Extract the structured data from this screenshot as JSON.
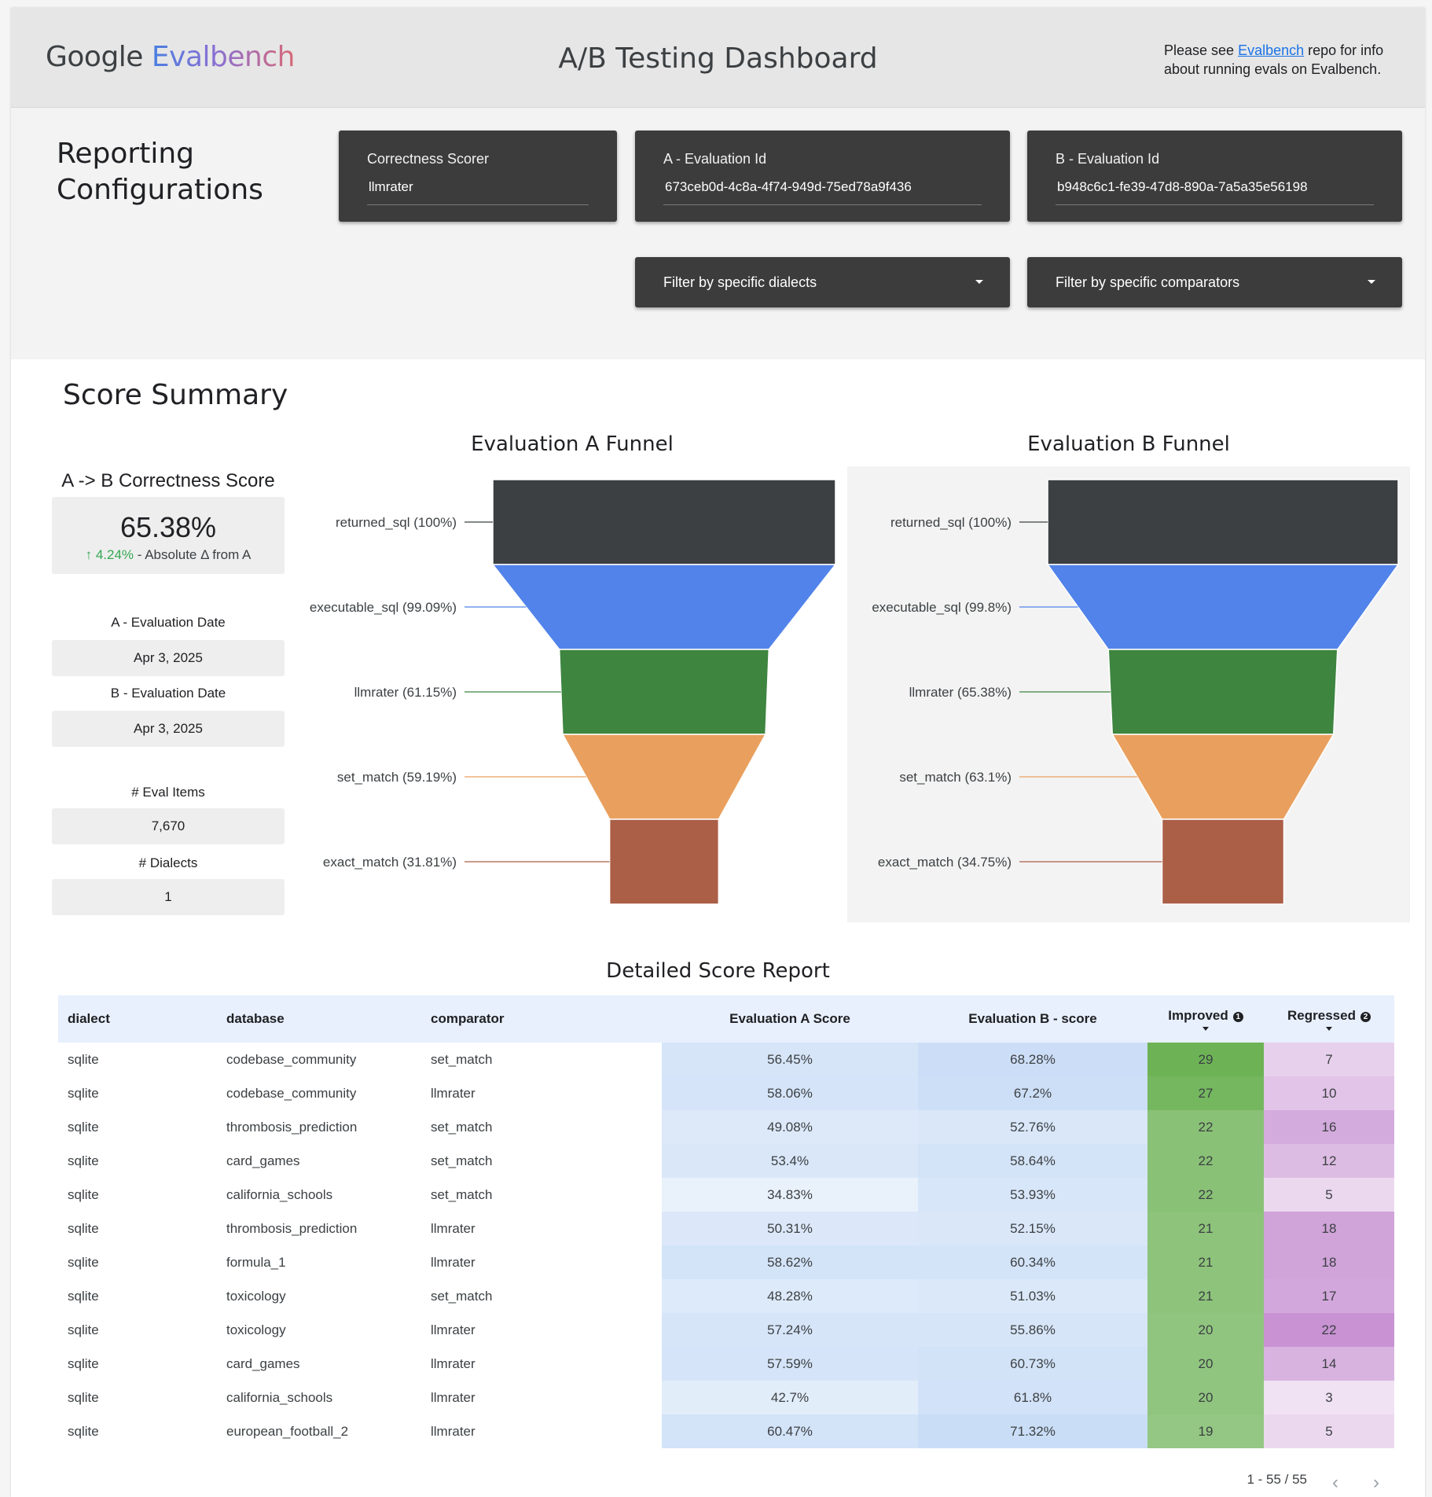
{
  "header": {
    "logo_google": "Google",
    "logo_evalbench": "Evalbench",
    "title": "A/B Testing Dashboard",
    "info_prefix": "Please see ",
    "info_link": "Evalbench",
    "info_suffix": " repo for info about running evals on Evalbench."
  },
  "config": {
    "title": "Reporting Configurations",
    "scorer": {
      "label": "Correctness Scorer",
      "value": "llmrater"
    },
    "eval_a": {
      "label": "A - Evaluation Id",
      "value": "673ceb0d-4c8a-4f74-949d-75ed78a9f436"
    },
    "eval_b": {
      "label": "B - Evaluation Id",
      "value": "b948c6c1-fe39-47d8-890a-7a5a35e56198"
    },
    "dialects_filter": "Filter by specific dialects",
    "comparators_filter": "Filter by specific comparators"
  },
  "summary": {
    "title": "Score Summary",
    "correctness_title": "A -> B Correctness Score",
    "correctness_value": "65.38%",
    "delta_value": "4.24%",
    "delta_suffix": " - Absolute Δ from A",
    "a_date_label": "A - Evaluation Date",
    "a_date": "Apr 3, 2025",
    "b_date_label": "B - Evaluation Date",
    "b_date": "Apr 3, 2025",
    "eval_items_label": "# Eval Items",
    "eval_items": "7,670",
    "dialects_label": "# Dialects",
    "dialects": "1"
  },
  "chart_data": [
    {
      "type": "funnel",
      "title": "Evaluation A Funnel",
      "stages": [
        {
          "name": "returned_sql",
          "label": "returned_sql (100%)",
          "value": 100,
          "color": "#3c4043"
        },
        {
          "name": "executable_sql",
          "label": "executable_sql (99.09%)",
          "value": 99.09,
          "color": "#5283ea"
        },
        {
          "name": "llmrater",
          "label": "llmrater (61.15%)",
          "value": 61.15,
          "color": "#3e8540"
        },
        {
          "name": "set_match",
          "label": "set_match (59.19%)",
          "value": 59.19,
          "color": "#e9a05e"
        },
        {
          "name": "exact_match",
          "label": "exact_match (31.81%)",
          "value": 31.81,
          "color": "#ab5f47"
        }
      ]
    },
    {
      "type": "funnel",
      "title": "Evaluation B Funnel",
      "stages": [
        {
          "name": "returned_sql",
          "label": "returned_sql (100%)",
          "value": 100,
          "color": "#3c4043"
        },
        {
          "name": "executable_sql",
          "label": "executable_sql (99.8%)",
          "value": 99.8,
          "color": "#5283ea"
        },
        {
          "name": "llmrater",
          "label": "llmrater (65.38%)",
          "value": 65.38,
          "color": "#3e8540"
        },
        {
          "name": "set_match",
          "label": "set_match (63.1%)",
          "value": 63.1,
          "color": "#e9a05e"
        },
        {
          "name": "exact_match",
          "label": "exact_match (34.75%)",
          "value": 34.75,
          "color": "#ab5f47"
        }
      ]
    }
  ],
  "table": {
    "title": "Detailed Score Report",
    "columns": [
      "dialect",
      "database",
      "comparator",
      "Evaluation A Score",
      "Evaluation B - score",
      "Improved",
      "Regressed"
    ],
    "improved_icon": "1",
    "regressed_icon": "2",
    "rows": [
      {
        "dialect": "sqlite",
        "database": "codebase_community",
        "comparator": "set_match",
        "a": "56.45%",
        "b": "68.28%",
        "improved": "29",
        "regressed": "7"
      },
      {
        "dialect": "sqlite",
        "database": "codebase_community",
        "comparator": "llmrater",
        "a": "58.06%",
        "b": "67.2%",
        "improved": "27",
        "regressed": "10"
      },
      {
        "dialect": "sqlite",
        "database": "thrombosis_prediction",
        "comparator": "set_match",
        "a": "49.08%",
        "b": "52.76%",
        "improved": "22",
        "regressed": "16"
      },
      {
        "dialect": "sqlite",
        "database": "card_games",
        "comparator": "set_match",
        "a": "53.4%",
        "b": "58.64%",
        "improved": "22",
        "regressed": "12"
      },
      {
        "dialect": "sqlite",
        "database": "california_schools",
        "comparator": "set_match",
        "a": "34.83%",
        "b": "53.93%",
        "improved": "22",
        "regressed": "5"
      },
      {
        "dialect": "sqlite",
        "database": "thrombosis_prediction",
        "comparator": "llmrater",
        "a": "50.31%",
        "b": "52.15%",
        "improved": "21",
        "regressed": "18"
      },
      {
        "dialect": "sqlite",
        "database": "formula_1",
        "comparator": "llmrater",
        "a": "58.62%",
        "b": "60.34%",
        "improved": "21",
        "regressed": "18"
      },
      {
        "dialect": "sqlite",
        "database": "toxicology",
        "comparator": "set_match",
        "a": "48.28%",
        "b": "51.03%",
        "improved": "21",
        "regressed": "17"
      },
      {
        "dialect": "sqlite",
        "database": "toxicology",
        "comparator": "llmrater",
        "a": "57.24%",
        "b": "55.86%",
        "improved": "20",
        "regressed": "22"
      },
      {
        "dialect": "sqlite",
        "database": "card_games",
        "comparator": "llmrater",
        "a": "57.59%",
        "b": "60.73%",
        "improved": "20",
        "regressed": "14"
      },
      {
        "dialect": "sqlite",
        "database": "california_schools",
        "comparator": "llmrater",
        "a": "42.7%",
        "b": "61.8%",
        "improved": "20",
        "regressed": "3"
      },
      {
        "dialect": "sqlite",
        "database": "european_football_2",
        "comparator": "llmrater",
        "a": "60.47%",
        "b": "71.32%",
        "improved": "19",
        "regressed": "5"
      }
    ],
    "pager": "1 - 55 / 55"
  }
}
